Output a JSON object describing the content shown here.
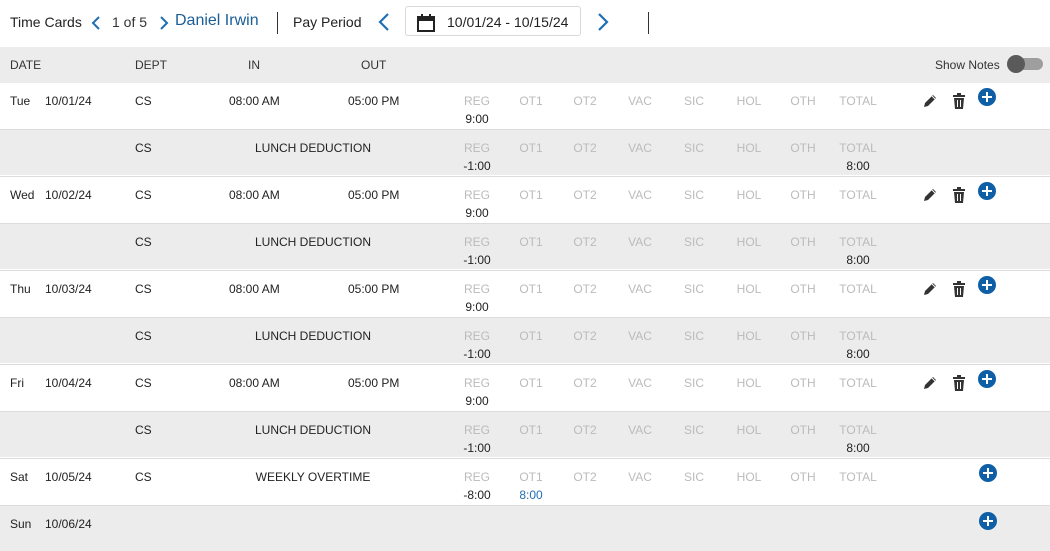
{
  "toolbar": {
    "title": "Time Cards",
    "page_counter": "1 of 5",
    "employee_name": "Daniel Irwin",
    "pay_period_label": "Pay Period",
    "date_range": "10/01/24 - 10/15/24"
  },
  "columns": {
    "date": "DATE",
    "dept": "DEPT",
    "in": "IN",
    "out": "OUT",
    "show_notes": "Show Notes",
    "show_notes_on": false
  },
  "totals_labels": [
    "REG",
    "OT1",
    "OT2",
    "VAC",
    "SIC",
    "HOL",
    "OTH",
    "TOTAL"
  ],
  "rows": [
    {
      "day": "Tue",
      "date": "10/01/24",
      "dept": "CS",
      "in": "08:00 AM",
      "out": "05:00 PM",
      "desc": "",
      "v": {
        "REG": "9:00"
      },
      "actions": [
        "edit",
        "delete",
        "add"
      ]
    },
    {
      "day": "",
      "date": "",
      "dept": "CS",
      "in": "",
      "out": "",
      "desc": "LUNCH DEDUCTION",
      "v": {
        "REG": "-1:00",
        "TOTAL": "8:00"
      },
      "actions": []
    },
    {
      "day": "Wed",
      "date": "10/02/24",
      "dept": "CS",
      "in": "08:00 AM",
      "out": "05:00 PM",
      "desc": "",
      "v": {
        "REG": "9:00"
      },
      "actions": [
        "edit",
        "delete",
        "add"
      ]
    },
    {
      "day": "",
      "date": "",
      "dept": "CS",
      "in": "",
      "out": "",
      "desc": "LUNCH DEDUCTION",
      "v": {
        "REG": "-1:00",
        "TOTAL": "8:00"
      },
      "actions": []
    },
    {
      "day": "Thu",
      "date": "10/03/24",
      "dept": "CS",
      "in": "08:00 AM",
      "out": "05:00 PM",
      "desc": "",
      "v": {
        "REG": "9:00"
      },
      "actions": [
        "edit",
        "delete",
        "add"
      ]
    },
    {
      "day": "",
      "date": "",
      "dept": "CS",
      "in": "",
      "out": "",
      "desc": "LUNCH DEDUCTION",
      "v": {
        "REG": "-1:00",
        "TOTAL": "8:00"
      },
      "actions": []
    },
    {
      "day": "Fri",
      "date": "10/04/24",
      "dept": "CS",
      "in": "08:00 AM",
      "out": "05:00 PM",
      "desc": "",
      "v": {
        "REG": "9:00"
      },
      "actions": [
        "edit",
        "delete",
        "add"
      ]
    },
    {
      "day": "",
      "date": "",
      "dept": "CS",
      "in": "",
      "out": "",
      "desc": "LUNCH DEDUCTION",
      "v": {
        "REG": "-1:00",
        "TOTAL": "8:00"
      },
      "actions": []
    },
    {
      "day": "Sat",
      "date": "10/05/24",
      "dept": "CS",
      "in": "",
      "out": "",
      "desc": "WEEKLY OVERTIME",
      "v": {
        "REG": "-8:00",
        "OT1": "8:00"
      },
      "actions": [
        "add"
      ]
    },
    {
      "day": "Sun",
      "date": "10/06/24",
      "dept": "",
      "in": "",
      "out": "",
      "desc": "",
      "v": {},
      "actions": [
        "add"
      ],
      "no_totals": true
    }
  ],
  "colors": {
    "accent": "#0f5fa6",
    "link": "#1f6fb2",
    "muted": "#bbbbbb",
    "row_alt": "#ececec"
  }
}
